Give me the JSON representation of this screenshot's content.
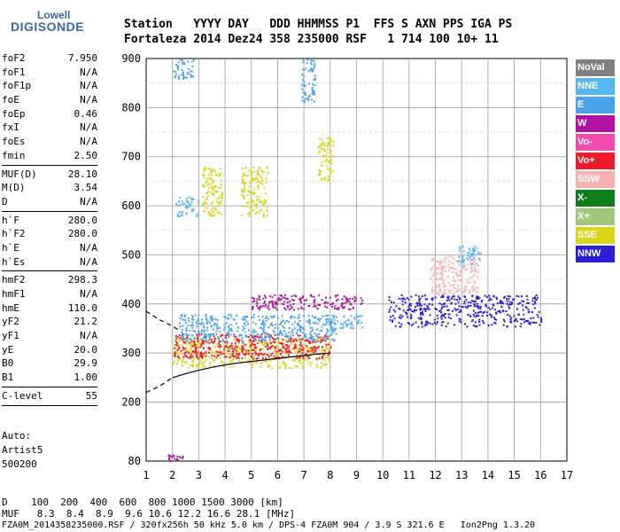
{
  "logo": {
    "line1": "Lowell",
    "line2": "DIGISONDE"
  },
  "header": {
    "row1": "Station   YYYY DAY   DDD HHMMSS P1  FFS S AXN PPS IGA PS",
    "row2": "Fortaleza 2014 Dez24 358 235000 RSF   1 714 100 10+ 11"
  },
  "params_group1": [
    {
      "label": "foF2",
      "value": "7.950"
    },
    {
      "label": "foF1",
      "value": "N/A"
    },
    {
      "label": "foF1p",
      "value": "N/A"
    },
    {
      "label": "foE",
      "value": "N/A"
    },
    {
      "label": "foEp",
      "value": "0.46"
    },
    {
      "label": "fxI",
      "value": "N/A"
    },
    {
      "label": "foEs",
      "value": "N/A"
    },
    {
      "label": "fmin",
      "value": "2.50"
    }
  ],
  "params_group2": [
    {
      "label": "MUF(D)",
      "value": "28.10"
    },
    {
      "label": "M(D)",
      "value": "3.54"
    },
    {
      "label": "D",
      "value": "N/A"
    }
  ],
  "params_group3": [
    {
      "label": "h`F",
      "value": "280.0"
    },
    {
      "label": "h`F2",
      "value": "280.0"
    },
    {
      "label": "h`E",
      "value": "N/A"
    },
    {
      "label": "h`Es",
      "value": "N/A"
    }
  ],
  "params_group4": [
    {
      "label": "hmF2",
      "value": "298.3"
    },
    {
      "label": "hmF1",
      "value": "N/A"
    },
    {
      "label": "hmE",
      "value": "110.0"
    },
    {
      "label": "yF2",
      "value": "21.2"
    },
    {
      "label": "yF1",
      "value": "N/A"
    },
    {
      "label": "yE",
      "value": "20.0"
    },
    {
      "label": "B0",
      "value": "29.9"
    },
    {
      "label": "B1",
      "value": "1.00"
    }
  ],
  "params_group5": [
    {
      "label": "C-level",
      "value": "55"
    }
  ],
  "autoscale": {
    "line1": "Auto:",
    "line2": "Artist5",
    "line3": "500200"
  },
  "bottom": {
    "d_row": "D    100  200  400  600  800 1000 1500 3000 [km]",
    "muf_row": "MUF   8.3  8.4  8.9  9.6 10.6 12.2 16.6 28.1 [MHz]",
    "footer": "FZA0M_2014358235000.RSF / 320fx256h 50 kHz 5.0 km / DPS-4 FZA0M 904 / 3.9 S 321.6 E   Ion2Png 1.3.20"
  },
  "legend": [
    {
      "label": "NoVal",
      "color": "#808080"
    },
    {
      "label": "NNE",
      "color": "#55b7f0"
    },
    {
      "label": "E",
      "color": "#4aa3e8"
    },
    {
      "label": "W",
      "color": "#b0139f"
    },
    {
      "label": "Vo-",
      "color": "#f24bb0"
    },
    {
      "label": "Vo+",
      "color": "#ee1c2b"
    },
    {
      "label": "SSW",
      "color": "#f7b2b0"
    },
    {
      "label": "X-",
      "color": "#0f7f1a"
    },
    {
      "label": "X+",
      "color": "#9fc77a"
    },
    {
      "label": "SSE",
      "color": "#d8d51a"
    },
    {
      "label": "NNW",
      "color": "#2a1ed6"
    }
  ],
  "chart_data": {
    "type": "scatter",
    "title": "",
    "xlabel": "",
    "ylabel": "",
    "xlim": [
      1,
      17
    ],
    "ylim": [
      80,
      900
    ],
    "x_ticks": [
      1,
      2,
      3,
      4,
      5,
      6,
      7,
      8,
      9,
      10,
      11,
      12,
      13,
      14,
      15,
      16,
      17
    ],
    "y_ticks": [
      80,
      200,
      300,
      400,
      500,
      600,
      700,
      800,
      900
    ],
    "grid": true,
    "legend_position": "right",
    "trace_curve": {
      "name": "",
      "x": [
        2.0,
        2.5,
        3.0,
        3.5,
        4.0,
        4.5,
        5.0,
        5.5,
        6.0,
        6.5,
        7.0,
        7.5,
        8.0
      ],
      "y": [
        250,
        258,
        265,
        271,
        276,
        280,
        283,
        286,
        289,
        292,
        295,
        298,
        300
      ]
    },
    "trace_curve_dashed": {
      "name": "",
      "x": [
        1.0,
        1.5,
        2.0
      ],
      "y": [
        220,
        232,
        250
      ]
    },
    "trace_curve_upper": {
      "name": "",
      "x": [
        1.0,
        1.5,
        2.0,
        2.2
      ],
      "y": [
        385,
        368,
        355,
        348
      ]
    },
    "clusters": [
      {
        "series": "NNE",
        "x": [
          2.1,
          3.0
        ],
        "y": [
          580,
          620
        ]
      },
      {
        "series": "SSE",
        "x": [
          3.1,
          3.9
        ],
        "y": [
          580,
          680
        ]
      },
      {
        "series": "SSE",
        "x": [
          4.6,
          5.6
        ],
        "y": [
          580,
          680
        ]
      },
      {
        "series": "SSE",
        "x": [
          7.5,
          8.1
        ],
        "y": [
          650,
          740
        ]
      },
      {
        "series": "E",
        "x": [
          2.0,
          2.8
        ],
        "y": [
          860,
          900
        ]
      },
      {
        "series": "E",
        "x": [
          6.9,
          7.4
        ],
        "y": [
          810,
          900
        ]
      },
      {
        "series": "SSE",
        "x": [
          2.0,
          8.0
        ],
        "y": [
          270,
          330
        ]
      },
      {
        "series": "Vo+",
        "x": [
          2.0,
          8.0
        ],
        "y": [
          290,
          340
        ]
      },
      {
        "series": "E",
        "x": [
          2.2,
          8.2
        ],
        "y": [
          325,
          380
        ]
      },
      {
        "series": "W",
        "x": [
          5.0,
          9.2
        ],
        "y": [
          390,
          420
        ]
      },
      {
        "series": "NNE",
        "x": [
          7.8,
          9.2
        ],
        "y": [
          350,
          380
        ]
      },
      {
        "series": "NNW",
        "x": [
          10.2,
          16.0
        ],
        "y": [
          355,
          420
        ]
      },
      {
        "series": "SSW",
        "x": [
          11.8,
          13.6
        ],
        "y": [
          420,
          500
        ]
      },
      {
        "series": "NNE",
        "x": [
          12.8,
          13.7
        ],
        "y": [
          480,
          520
        ]
      },
      {
        "series": "W",
        "x": [
          1.8,
          2.4
        ],
        "y": [
          80,
          95
        ]
      }
    ]
  }
}
